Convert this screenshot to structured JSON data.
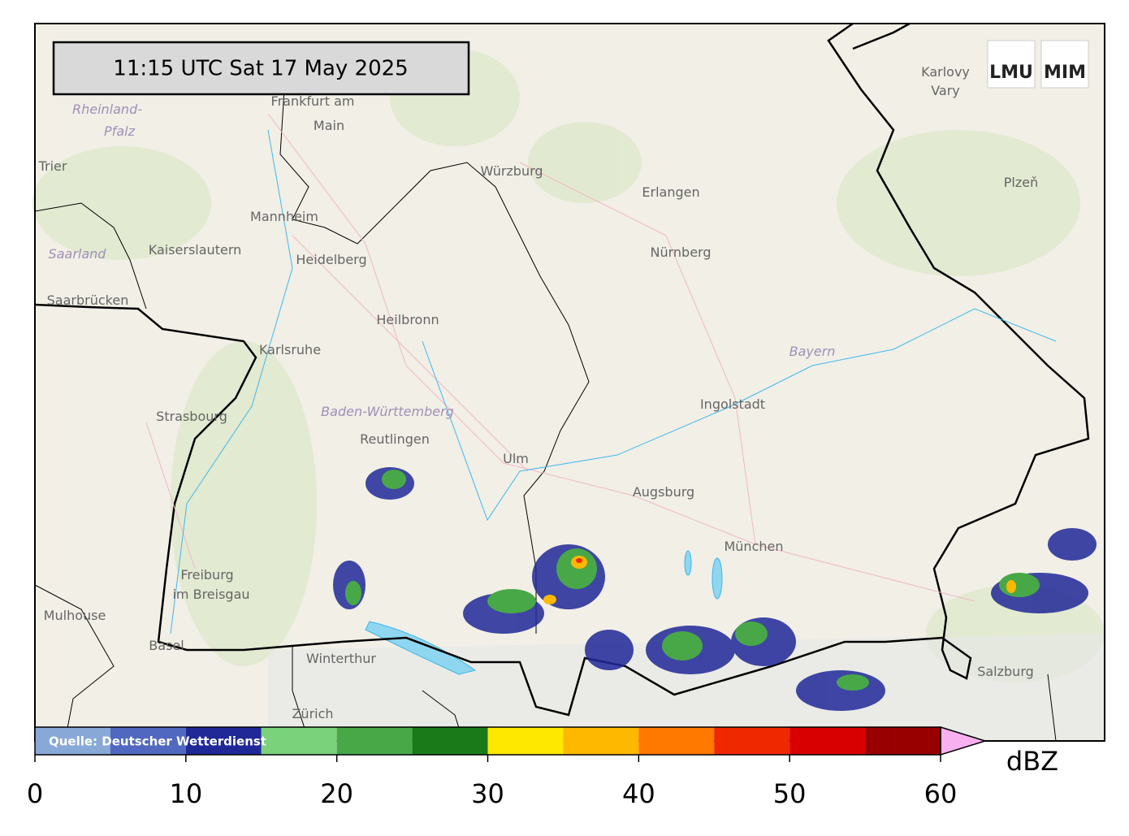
{
  "timestamp": "11:15 UTC  Sat 17 May 2025",
  "logos": [
    "LMU",
    "MIM"
  ],
  "source": "Quelle: Deutscher Wetterdienst",
  "colorbar": {
    "unit": "dBZ",
    "bounds": [
      0,
      5,
      10,
      15,
      20,
      25,
      30,
      35,
      40,
      45,
      50,
      55,
      60
    ],
    "colors": [
      "#88a8d8",
      "#5068c0",
      "#202898",
      "#7ad27a",
      "#48a848",
      "#1a7a1a",
      "#ffe800",
      "#ffb800",
      "#ff7800",
      "#f02800",
      "#d80000",
      "#980000"
    ],
    "extend_color": "#f8b0f0",
    "ticks": [
      0,
      10,
      20,
      30,
      40,
      50,
      60
    ]
  },
  "places": [
    "Frankfurt am",
    "Main",
    "Rheinland-",
    "Pfalz",
    "Trier",
    "Würzburg",
    "Erlangen",
    "Nürnberg",
    "Mannheim",
    "Kaiserslautern",
    "Saarland",
    "Heidelberg",
    "Saarbrücken",
    "Heilbronn",
    "Karlsruhe",
    "Strasbourg",
    "Baden-Württemberg",
    "Reutlingen",
    "Ulm",
    "Augsburg",
    "Ingolstadt",
    "Bayern",
    "München",
    "Freiburg",
    "im Breisgau",
    "Mulhouse",
    "Basel",
    "Winterthur",
    "Zürich",
    "Salzburg",
    "Karlovy",
    "Vary",
    "Plzeň"
  ]
}
